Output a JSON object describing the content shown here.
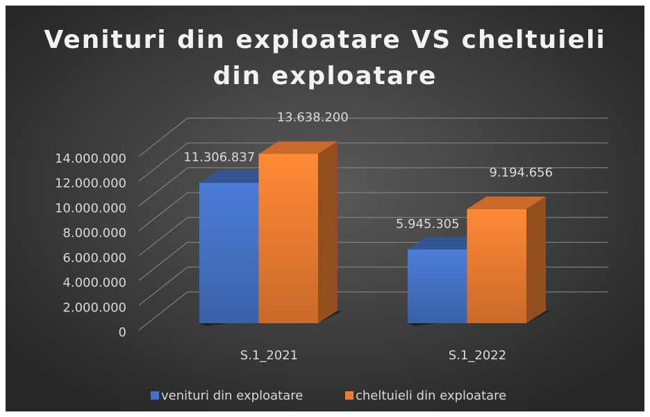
{
  "chart_data": {
    "type": "bar3d",
    "title": "Venituri din exploatare VS cheltuieli din exploatare",
    "categories": [
      "S.1_2021",
      "S.1_2022"
    ],
    "series": [
      {
        "name": "venituri din exploatare",
        "color": "#4472c4",
        "values": [
          11306837,
          5945305
        ],
        "value_labels": [
          "11.306.837",
          "5.945.305"
        ]
      },
      {
        "name": "cheltuieli din exploatare",
        "color": "#ed7d31",
        "values": [
          13638200,
          9194656
        ],
        "value_labels": [
          "13.638.200",
          "9.194.656"
        ]
      }
    ],
    "ylim": [
      0,
      14000000
    ],
    "yticks": [
      0,
      {
        "value": 2000000,
        "label": "2.000.000"
      },
      {
        "value": 4000000,
        "label": "4.000.000"
      },
      {
        "value": 6000000,
        "label": "6.000.000"
      },
      {
        "value": 8000000,
        "label": "8.000.000"
      },
      {
        "value": 10000000,
        "label": "10.000.000"
      },
      {
        "value": 12000000,
        "label": "12.000.000"
      },
      {
        "value": 14000000,
        "label": "14.000.000"
      }
    ],
    "grid": true,
    "legend": "bottom"
  }
}
